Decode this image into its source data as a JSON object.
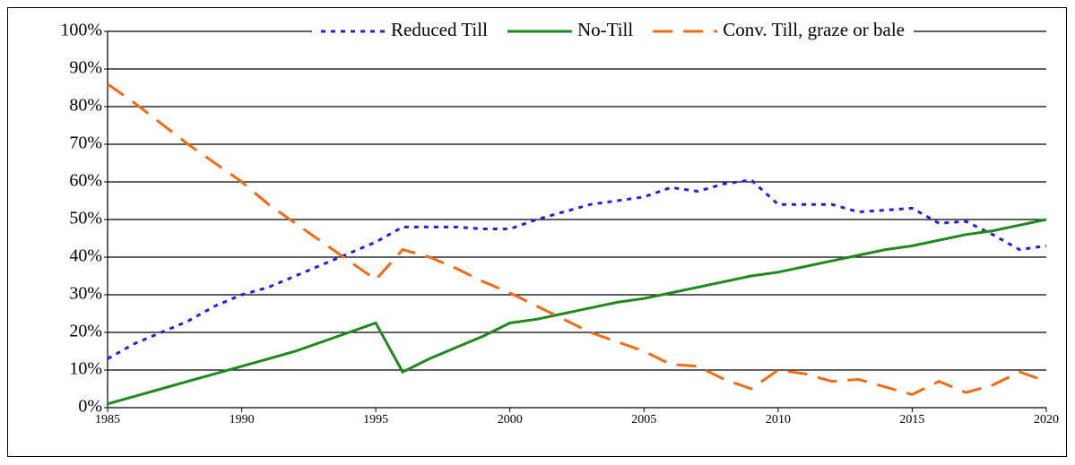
{
  "chart_data": {
    "type": "line",
    "x": [
      1985,
      1986,
      1987,
      1988,
      1989,
      1990,
      1991,
      1992,
      1993,
      1994,
      1995,
      1996,
      1997,
      1998,
      1999,
      2000,
      2001,
      2002,
      2003,
      2004,
      2005,
      2006,
      2007,
      2008,
      2009,
      2010,
      2011,
      2012,
      2013,
      2014,
      2015,
      2016,
      2017,
      2018,
      2019,
      2020
    ],
    "series": [
      {
        "name": "Reduced Till",
        "color": "#1f1fe0",
        "style": "dotted",
        "values": [
          13,
          17,
          20,
          23,
          27,
          30,
          32,
          35,
          38,
          41,
          44,
          48,
          48,
          48,
          47.5,
          47.5,
          50,
          52,
          54,
          55,
          56,
          58.5,
          57.5,
          59.5,
          60.5,
          54,
          54,
          54,
          52,
          52.5,
          53,
          49,
          49.5,
          46,
          42,
          43
        ]
      },
      {
        "name": "No-Till",
        "color": "#1e8a1e",
        "style": "solid",
        "values": [
          1,
          3,
          5,
          7,
          9,
          11,
          13,
          15,
          17.5,
          20,
          22.5,
          9.5,
          13,
          16,
          19,
          22.5,
          23.5,
          25,
          26.5,
          28,
          29,
          30.5,
          32,
          33.5,
          35,
          36,
          37.5,
          39,
          40.5,
          42,
          43,
          44.5,
          46,
          47,
          48.5,
          50
        ]
      },
      {
        "name": "Conv. Till, graze or bale",
        "color": "#f26a12",
        "style": "dashed",
        "values": [
          86,
          81,
          75.5,
          70,
          65,
          60,
          54,
          49,
          44,
          39,
          34,
          42,
          40,
          37,
          33.5,
          30.5,
          27,
          23.5,
          20,
          17.5,
          15,
          11.5,
          11,
          7.5,
          5,
          10,
          9,
          7,
          7.5,
          5.5,
          3.5,
          7,
          4,
          6,
          9.5,
          7
        ]
      }
    ],
    "xlim": [
      1985,
      2020
    ],
    "xticks": [
      1985,
      1990,
      1995,
      2000,
      2005,
      2010,
      2015,
      2020
    ],
    "ylim": [
      0,
      100
    ],
    "yticks": [
      {
        "value": 0,
        "label": "0%"
      },
      {
        "value": 10,
        "label": "10%"
      },
      {
        "value": 20,
        "label": "20%"
      },
      {
        "value": 30,
        "label": "30%"
      },
      {
        "value": 40,
        "label": "40%"
      },
      {
        "value": 50,
        "label": "50%"
      },
      {
        "value": 60,
        "label": "60%"
      },
      {
        "value": 70,
        "label": "70%"
      },
      {
        "value": 80,
        "label": "80%"
      },
      {
        "value": 90,
        "label": "90%"
      },
      {
        "value": 100,
        "label": "100%"
      }
    ],
    "grid": true,
    "legend": "top"
  }
}
